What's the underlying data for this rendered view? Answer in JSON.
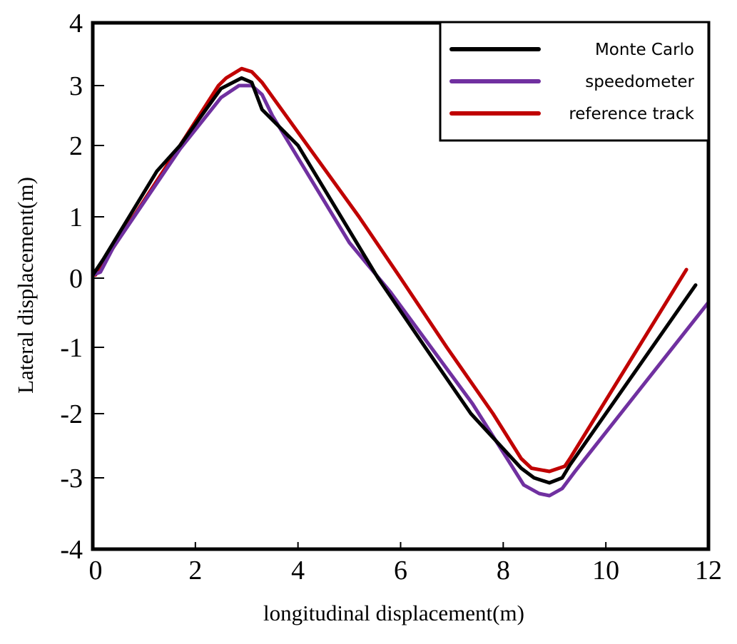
{
  "chart_data": {
    "type": "line",
    "title": "",
    "xlabel": "longitudinal displacement(m)",
    "ylabel": "Lateral displacement(m)",
    "xlim": [
      0,
      12
    ],
    "ylim": [
      -4,
      4
    ],
    "xticks": [
      "0",
      "2",
      "4",
      "6",
      "8",
      "10",
      "12"
    ],
    "yticks": [
      "-4",
      "-3",
      "-2",
      "-1",
      "0",
      "1",
      "2",
      "3",
      "4"
    ],
    "grid": false,
    "legend_position": "top-right",
    "series": [
      {
        "name": "Monte Carlo",
        "color": "#000000",
        "x": [
          0,
          0.2,
          1.25,
          1.7,
          2.5,
          2.9,
          3.1,
          3.3,
          4.0,
          5.56,
          6.48,
          7.37,
          8.35,
          8.6,
          8.9,
          9.15,
          9.3,
          11.75
        ],
        "y": [
          0.05,
          0.3,
          1.64,
          2.0,
          2.95,
          3.12,
          3.05,
          2.6,
          2.0,
          0,
          -1,
          -2,
          -2.85,
          -3.0,
          -3.07,
          -3.0,
          -2.8,
          -0.1
        ]
      },
      {
        "name": "speedometer",
        "color": "#7030a0",
        "x": [
          0,
          0.15,
          0.4,
          1.7,
          2.5,
          2.85,
          3.1,
          3.3,
          3.5,
          5.0,
          5.8,
          7.4,
          8.4,
          8.7,
          8.9,
          9.15,
          9.4,
          12
        ],
        "y": [
          0.05,
          0.1,
          0.5,
          1.95,
          2.8,
          3.0,
          3.0,
          2.85,
          2.5,
          0.58,
          -0.2,
          -1.85,
          -3.1,
          -3.22,
          -3.25,
          -3.15,
          -2.9,
          -0.35
        ]
      },
      {
        "name": "reference track",
        "color": "#c00000",
        "x": [
          0.05,
          1.7,
          2.45,
          2.6,
          2.9,
          3.1,
          3.3,
          5.19,
          6.0,
          6.9,
          7.8,
          8.35,
          8.55,
          8.9,
          9.2,
          9.3,
          11.57
        ],
        "y": [
          0.05,
          2.0,
          3.0,
          3.12,
          3.27,
          3.22,
          3.05,
          1,
          0,
          -1,
          -2,
          -2.7,
          -2.85,
          -2.9,
          -2.82,
          -2.7,
          0.14
        ]
      }
    ]
  }
}
